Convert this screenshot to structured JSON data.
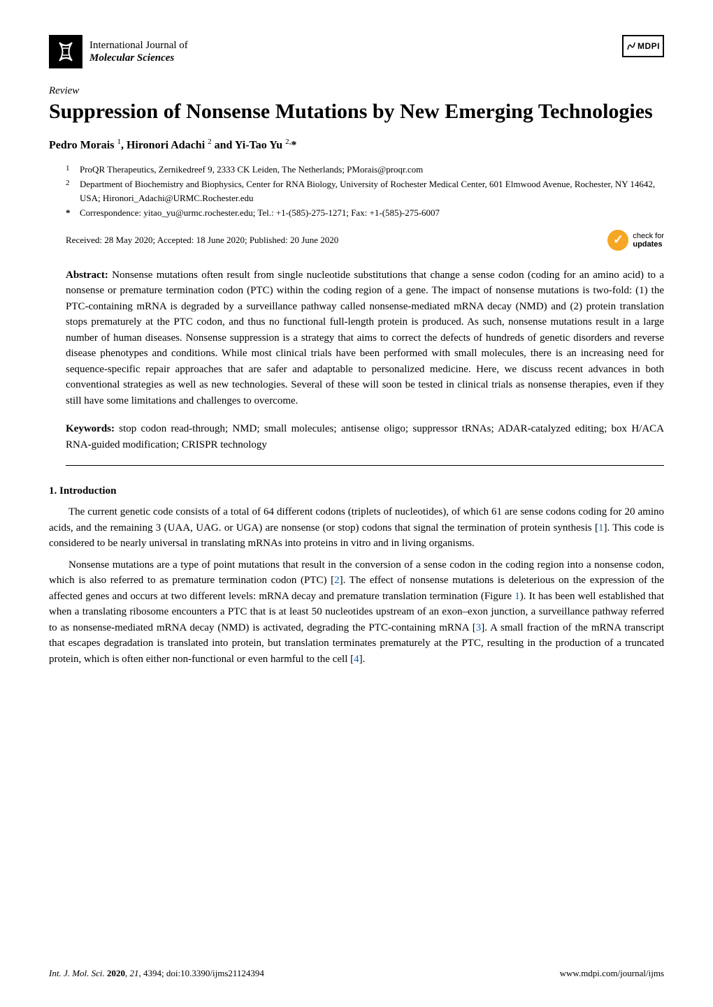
{
  "journal": {
    "line1": "International Journal of",
    "line2": "Molecular Sciences"
  },
  "publisher_logo": "MDPI",
  "article_type": "Review",
  "title": "Suppression of Nonsense Mutations by New Emerging Technologies",
  "authors_html": "Pedro Morais <sup>1</sup>, Hironori Adachi <sup>2</sup> and Yi-Tao Yu <sup>2,</sup>*",
  "affiliations": [
    {
      "num": "1",
      "text": "ProQR Therapeutics, Zernikedreef 9, 2333 CK Leiden, The Netherlands; PMorais@proqr.com"
    },
    {
      "num": "2",
      "text": "Department of Biochemistry and Biophysics, Center for RNA Biology, University of Rochester Medical Center, 601 Elmwood Avenue, Rochester, NY 14642, USA; Hironori_Adachi@URMC.Rochester.edu"
    }
  ],
  "correspondence": {
    "num": "*",
    "text": "Correspondence: yitao_yu@urmc.rochester.edu; Tel.: +1-(585)-275-1271; Fax: +1-(585)-275-6007"
  },
  "received": "Received: 28 May 2020; Accepted: 18 June 2020; Published: 20 June 2020",
  "check_updates": {
    "line1": "check for",
    "line2": "updates"
  },
  "abstract": {
    "label": "Abstract:",
    "text": " Nonsense mutations often result from single nucleotide substitutions that change a sense codon (coding for an amino acid) to a nonsense or premature termination codon (PTC) within the coding region of a gene. The impact of nonsense mutations is two-fold: (1) the PTC-containing mRNA is degraded by a surveillance pathway called nonsense-mediated mRNA decay (NMD) and (2) protein translation stops prematurely at the PTC codon, and thus no functional full-length protein is produced. As such, nonsense mutations result in a large number of human diseases. Nonsense suppression is a strategy that aims to correct the defects of hundreds of genetic disorders and reverse disease phenotypes and conditions. While most clinical trials have been performed with small molecules, there is an increasing need for sequence-specific repair approaches that are safer and adaptable to personalized medicine. Here, we discuss recent advances in both conventional strategies as well as new technologies. Several of these will soon be tested in clinical trials as nonsense therapies, even if they still have some limitations and challenges to overcome."
  },
  "keywords": {
    "label": "Keywords:",
    "text": " stop codon read-through; NMD; small molecules; antisense oligo; suppressor tRNAs; ADAR-catalyzed editing; box H/ACA RNA-guided modification; CRISPR technology"
  },
  "section1_heading": "1. Introduction",
  "para1": {
    "pre": "The current genetic code consists of a total of 64 different codons (triplets of nucleotides), of which 61 are sense codons coding for 20 amino acids, and the remaining 3 (UAA, UAG. or UGA) are nonsense (or stop) codons that signal the termination of protein synthesis [",
    "cite": "1",
    "post": "]. This code is considered to be nearly universal in translating mRNAs into proteins in vitro and in living organisms."
  },
  "para2": {
    "seg1": "Nonsense mutations are a type of point mutations that result in the conversion of a sense codon in the coding region into a nonsense codon, which is also referred to as premature termination codon (PTC) [",
    "cite1": "2",
    "seg2": "]. The effect of nonsense mutations is deleterious on the expression of the affected genes and occurs at two different levels: mRNA decay and premature translation termination (Figure ",
    "fig": "1",
    "seg3": "). It has been well established that when a translating ribosome encounters a PTC that is at least 50 nucleotides upstream of an exon–exon junction, a surveillance pathway referred to as nonsense-mediated mRNA decay (NMD) is activated, degrading the PTC-containing mRNA [",
    "cite2": "3",
    "seg4": "]. A small fraction of the mRNA transcript that escapes degradation is translated into protein, but translation terminates prematurely at the PTC, resulting in the production of a truncated protein, which is often either non-functional or even harmful to the cell [",
    "cite3": "4",
    "seg5": "]."
  },
  "footer": {
    "left": "Int. J. Mol. Sci. 2020, 21, 4394; doi:10.3390/ijms21124394",
    "right": "www.mdpi.com/journal/ijms"
  },
  "colors": {
    "link": "#0066cc",
    "check_circle": "#f5a623"
  }
}
